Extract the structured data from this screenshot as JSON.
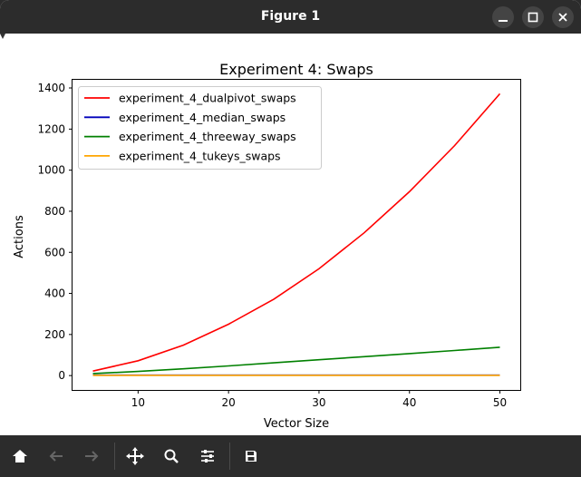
{
  "window": {
    "title": "Figure 1",
    "buttons": {
      "minimize": "minimize-icon",
      "maximize": "maximize-icon",
      "close": "close-icon"
    }
  },
  "toolbar": {
    "buttons": [
      "home-icon",
      "back-icon",
      "forward-icon",
      "pan-icon",
      "zoom-icon",
      "configure-subplots-icon",
      "save-icon"
    ]
  },
  "chart_data": {
    "type": "line",
    "title": "Experiment 4: Swaps",
    "xlabel": "Vector Size",
    "ylabel": "Actions",
    "x": [
      5,
      10,
      15,
      20,
      25,
      30,
      35,
      40,
      45,
      50
    ],
    "xlim": [
      2.75,
      52.25
    ],
    "ylim": [
      -70,
      1440
    ],
    "xticks": [
      10,
      20,
      30,
      40,
      50
    ],
    "yticks": [
      0,
      200,
      400,
      600,
      800,
      1000,
      1200,
      1400
    ],
    "grid": false,
    "legend_position": "upper-left",
    "series": [
      {
        "name": "experiment_4_dualpivot_swaps",
        "color": "#ff0000",
        "values": [
          22,
          72,
          148,
          250,
          372,
          520,
          695,
          895,
          1120,
          1372
        ]
      },
      {
        "name": "experiment_4_median_swaps",
        "color": "#0000bb",
        "values": [
          2,
          2,
          2,
          2,
          2,
          2,
          2,
          2,
          2,
          2
        ]
      },
      {
        "name": "experiment_4_threeway_swaps",
        "color": "#008000",
        "values": [
          10,
          20,
          33,
          47,
          62,
          77,
          92,
          107,
          122,
          138
        ]
      },
      {
        "name": "experiment_4_tukeys_swaps",
        "color": "#ffa500",
        "values": [
          1,
          1,
          1,
          1,
          1,
          1,
          1,
          1,
          1,
          1
        ]
      }
    ]
  }
}
